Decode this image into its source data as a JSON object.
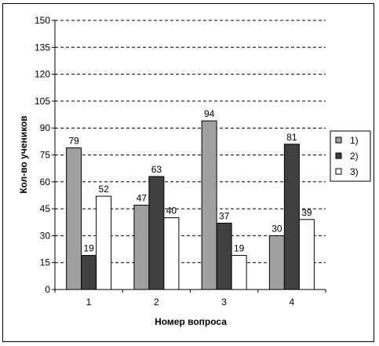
{
  "chart_data": {
    "type": "bar",
    "categories": [
      "1",
      "2",
      "3",
      "4"
    ],
    "series": [
      {
        "name": "1)",
        "values": [
          79,
          47,
          94,
          30
        ],
        "color": "#a0a0a0"
      },
      {
        "name": "2)",
        "values": [
          19,
          63,
          37,
          81
        ],
        "color": "#404040"
      },
      {
        "name": "3)",
        "values": [
          52,
          40,
          19,
          39
        ],
        "color": "#ffffff"
      }
    ],
    "title": "",
    "xlabel": "Номер вопроса",
    "ylabel": "Кол-во учеников",
    "ylim": [
      0,
      150
    ],
    "yticks": [
      0,
      15,
      30,
      45,
      60,
      75,
      90,
      105,
      120,
      135,
      150
    ],
    "grid": true,
    "grid_style": "dashed",
    "legend_position": "right"
  }
}
